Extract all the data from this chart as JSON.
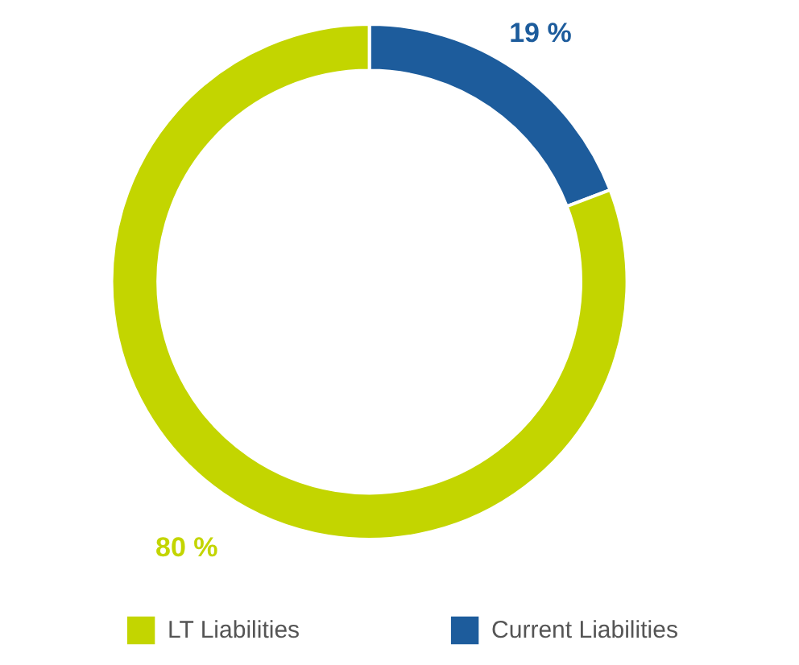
{
  "chart_data": {
    "type": "donut",
    "categories": [
      "Current Liabilities",
      "LT Liabilities"
    ],
    "values": [
      19,
      80
    ],
    "colors": [
      "#1d5c9c",
      "#c3d500"
    ],
    "value_labels": [
      "19 %",
      "80 %"
    ],
    "legend": "bottom"
  }
}
